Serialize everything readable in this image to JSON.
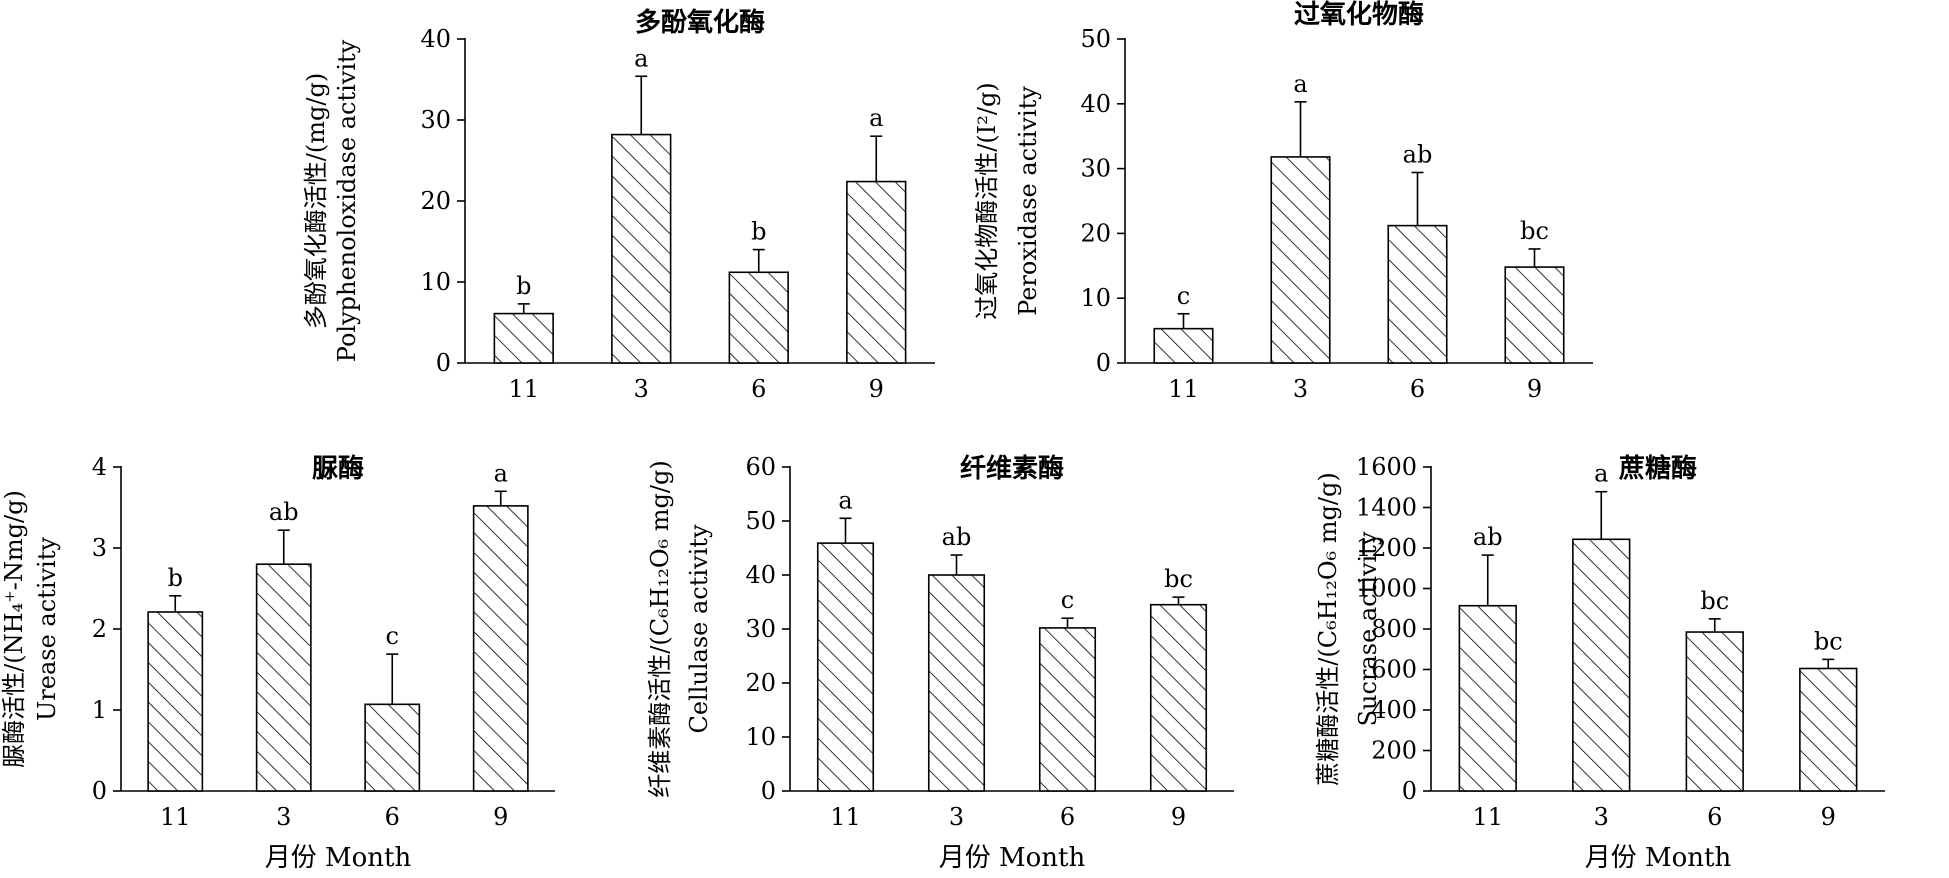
{
  "chart_data": [
    {
      "type": "bar",
      "title": "多酚氧化酶",
      "ylabel": "多酚氧化酶活性/(mg/g)",
      "ylabel_en": "Polyphenoloxidase activity",
      "xlabel": "",
      "categories": [
        "11",
        "3",
        "6",
        "9"
      ],
      "values": [
        6.1,
        28.2,
        11.2,
        22.4
      ],
      "errors": [
        1.2,
        7.2,
        2.8,
        5.6
      ],
      "letters": [
        "b",
        "a",
        "b",
        "a"
      ],
      "ylim": [
        0,
        40
      ],
      "yticks": [
        0,
        10,
        20,
        30,
        40
      ]
    },
    {
      "type": "bar",
      "title": "过氧化物酶",
      "ylabel": "过氧化物酶活性/(I²/g)",
      "ylabel_en": "Peroxidase activity",
      "xlabel": "",
      "categories": [
        "11",
        "3",
        "6",
        "9"
      ],
      "values": [
        5.3,
        31.8,
        21.2,
        14.8
      ],
      "errors": [
        2.3,
        8.5,
        8.2,
        2.8
      ],
      "letters": [
        "c",
        "a",
        "ab",
        "bc"
      ],
      "ylim": [
        0,
        50
      ],
      "yticks": [
        0,
        10,
        20,
        30,
        40,
        50
      ]
    },
    {
      "type": "bar",
      "title": "脲酶",
      "ylabel": "脲酶活性/(NH₄⁺-Nmg/g)",
      "ylabel_en": "Urease activity",
      "xlabel": "月份 Month",
      "categories": [
        "11",
        "3",
        "6",
        "9"
      ],
      "values": [
        2.21,
        2.8,
        1.07,
        3.52
      ],
      "errors": [
        0.2,
        0.42,
        0.62,
        0.18
      ],
      "letters": [
        "b",
        "ab",
        "c",
        "a"
      ],
      "ylim": [
        0,
        4
      ],
      "yticks": [
        0,
        1,
        2,
        3,
        4
      ]
    },
    {
      "type": "bar",
      "title": "纤维素酶",
      "ylabel": "纤维素酶活性/(C₆H₁₂O₆ mg/g)",
      "ylabel_en": "Cellulase activity",
      "xlabel": "月份 Month",
      "categories": [
        "11",
        "3",
        "6",
        "9"
      ],
      "values": [
        45.9,
        40.0,
        30.2,
        34.5
      ],
      "errors": [
        4.6,
        3.7,
        1.8,
        1.4
      ],
      "letters": [
        "a",
        "ab",
        "c",
        "bc"
      ],
      "ylim": [
        0,
        60
      ],
      "yticks": [
        0,
        10,
        20,
        30,
        40,
        50,
        60
      ]
    },
    {
      "type": "bar",
      "title": "蔗糖酶",
      "ylabel": "蔗糖酶活性/(C₆H₁₂O₆ mg/g)",
      "ylabel_en": "Sucrase activity",
      "xlabel": "月份 Month",
      "categories": [
        "11",
        "3",
        "6",
        "9"
      ],
      "values": [
        915,
        1243,
        785,
        605
      ],
      "errors": [
        250,
        235,
        65,
        45
      ],
      "letters": [
        "ab",
        "a",
        "bc",
        "bc"
      ],
      "ylim": [
        0,
        1600
      ],
      "yticks": [
        0,
        200,
        400,
        600,
        800,
        1000,
        1200,
        1400,
        1600
      ]
    }
  ]
}
